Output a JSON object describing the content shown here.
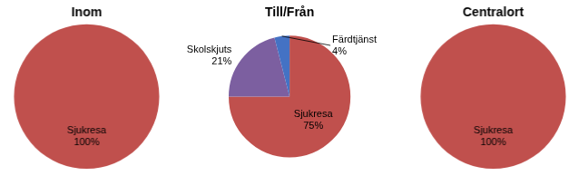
{
  "chart_data": [
    {
      "type": "pie",
      "title": "Inom",
      "categories": [
        "Sjukresa"
      ],
      "values": [
        100
      ],
      "value_labels": [
        "100%"
      ],
      "colors": [
        "#c0504d"
      ],
      "data_labels": true
    },
    {
      "type": "pie",
      "title": "Till/Från",
      "categories": [
        "Sjukresa",
        "Skolskjuts",
        "Färdtjänst"
      ],
      "values": [
        75,
        21,
        4
      ],
      "value_labels": [
        "75%",
        "21%",
        "4%"
      ],
      "colors": [
        "#c0504d",
        "#7c5fa0",
        "#4472c4"
      ],
      "data_labels": true
    },
    {
      "type": "pie",
      "title": "Centralort",
      "categories": [
        "Sjukresa"
      ],
      "values": [
        100
      ],
      "value_labels": [
        "100%"
      ],
      "colors": [
        "#c0504d"
      ],
      "data_labels": true
    }
  ]
}
